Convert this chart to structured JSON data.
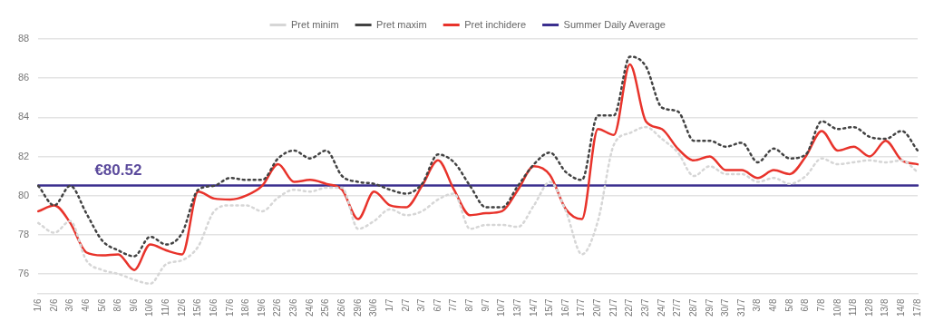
{
  "chart_data": {
    "type": "line",
    "categories": [
      "1/6",
      "2/6",
      "3/6",
      "4/6",
      "5/6",
      "8/6",
      "9/6",
      "10/6",
      "11/6",
      "12/6",
      "15/6",
      "16/6",
      "17/6",
      "18/6",
      "19/6",
      "22/6",
      "23/6",
      "24/6",
      "25/6",
      "26/6",
      "29/6",
      "30/6",
      "1/7",
      "2/7",
      "3/7",
      "6/7",
      "7/7",
      "8/7",
      "9/7",
      "10/7",
      "13/7",
      "14/7",
      "15/7",
      "16/7",
      "17/7",
      "20/7",
      "21/7",
      "22/7",
      "23/7",
      "24/7",
      "27/7",
      "28/7",
      "29/7",
      "30/7",
      "31/7",
      "3/8",
      "4/8",
      "5/8",
      "6/8",
      "7/8",
      "10/8",
      "11/8",
      "12/8",
      "13/8",
      "14/8",
      "17/8"
    ],
    "series": [
      {
        "name": "Pret minim",
        "color": "#d6d6d6",
        "line_style": "dotted",
        "values": [
          78.6,
          78.1,
          78.7,
          76.7,
          76.2,
          76.0,
          75.7,
          75.5,
          76.5,
          76.7,
          77.4,
          79.2,
          79.5,
          79.5,
          79.2,
          79.9,
          80.3,
          80.2,
          80.4,
          80.4,
          78.3,
          78.7,
          79.3,
          79.0,
          79.2,
          79.8,
          80.1,
          78.3,
          78.5,
          78.5,
          78.4,
          79.5,
          80.7,
          79.2,
          77.0,
          78.7,
          82.6,
          83.2,
          83.5,
          82.9,
          82.2,
          81.0,
          81.5,
          81.1,
          81.1,
          80.7,
          80.9,
          80.6,
          81.0,
          81.9,
          81.6,
          81.7,
          81.8,
          81.7,
          81.8,
          81.2
        ]
      },
      {
        "name": "Pret maxim",
        "color": "#424242",
        "line_style": "dotted",
        "values": [
          80.5,
          79.5,
          80.5,
          79.1,
          77.7,
          77.2,
          76.9,
          77.9,
          77.5,
          78.1,
          80.3,
          80.5,
          80.9,
          80.8,
          80.8,
          81.9,
          82.3,
          81.9,
          82.3,
          81.0,
          80.7,
          80.6,
          80.3,
          80.1,
          80.6,
          82.1,
          81.7,
          80.5,
          79.4,
          79.4,
          80.5,
          81.6,
          82.2,
          81.2,
          80.8,
          84.1,
          84.1,
          87.1,
          86.6,
          84.5,
          84.3,
          82.8,
          82.8,
          82.5,
          82.7,
          81.7,
          82.4,
          81.9,
          82.1,
          83.8,
          83.4,
          83.5,
          83.0,
          82.9,
          83.3,
          82.3
        ]
      },
      {
        "name": "Pret inchidere",
        "color": "#e8332b",
        "line_style": "solid",
        "values": [
          79.2,
          79.5,
          78.6,
          77.1,
          76.95,
          77.0,
          76.2,
          77.5,
          77.2,
          77.0,
          80.2,
          79.85,
          79.8,
          80.0,
          80.5,
          81.6,
          80.7,
          80.8,
          80.6,
          80.3,
          78.8,
          80.2,
          79.5,
          79.4,
          80.5,
          81.8,
          80.3,
          79.0,
          79.1,
          79.2,
          80.3,
          81.5,
          81.05,
          79.3,
          78.8,
          83.4,
          83.1,
          86.7,
          83.8,
          83.4,
          82.4,
          81.8,
          82.0,
          81.3,
          81.3,
          80.9,
          81.3,
          81.1,
          82.0,
          83.3,
          82.3,
          82.5,
          82.0,
          82.8,
          81.8,
          81.6
        ]
      },
      {
        "name": "Summer Daily Average",
        "color": "#3b2f8f",
        "line_style": "solid",
        "values": [
          80.52,
          80.52,
          80.52,
          80.52,
          80.52,
          80.52,
          80.52,
          80.52,
          80.52,
          80.52,
          80.52,
          80.52,
          80.52,
          80.52,
          80.52,
          80.52,
          80.52,
          80.52,
          80.52,
          80.52,
          80.52,
          80.52,
          80.52,
          80.52,
          80.52,
          80.52,
          80.52,
          80.52,
          80.52,
          80.52,
          80.52,
          80.52,
          80.52,
          80.52,
          80.52,
          80.52,
          80.52,
          80.52,
          80.52,
          80.52,
          80.52,
          80.52,
          80.52,
          80.52,
          80.52,
          80.52,
          80.52,
          80.52,
          80.52,
          80.52,
          80.52,
          80.52,
          80.52,
          80.52,
          80.52,
          80.52
        ]
      }
    ],
    "annotations": [
      {
        "text": "€80.52",
        "x": "8/6",
        "y": 80.52
      }
    ],
    "ylim": [
      75,
      88
    ],
    "yticks": [
      76,
      78,
      80,
      82,
      84,
      86,
      88
    ],
    "grid": "y",
    "legend": "top",
    "marker": "none"
  }
}
